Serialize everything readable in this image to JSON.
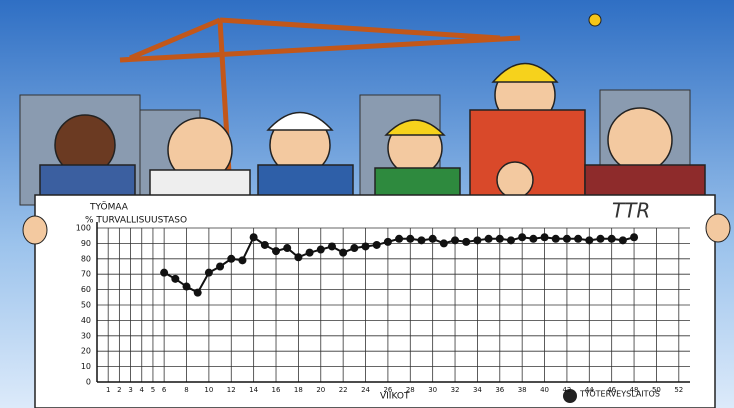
{
  "chart_data": {
    "type": "line",
    "title": "TYÖMAA",
    "y_label": "% TURVALLISUUSTASO",
    "x_label": "VIIKOT",
    "signature": "TTR",
    "logo_text": "TYÖTERVEYSLAITOS",
    "x": [
      6,
      7,
      8,
      9,
      10,
      11,
      12,
      13,
      14,
      15,
      16,
      17,
      18,
      19,
      20,
      21,
      22,
      23,
      24,
      25,
      26,
      27,
      28,
      29,
      30,
      31,
      32,
      33,
      34,
      35,
      36,
      37,
      38,
      39,
      40,
      41,
      42,
      43,
      44,
      45,
      46,
      47,
      48
    ],
    "series": [
      {
        "color": "#111111",
        "values": [
          71,
          67,
          62,
          58,
          71,
          75,
          80,
          79,
          94,
          89,
          85,
          87,
          81,
          84,
          86,
          88,
          84,
          87,
          88,
          89,
          91,
          93,
          93,
          92,
          93,
          90,
          92,
          91,
          92,
          93,
          93,
          92,
          94,
          93,
          94,
          93,
          93,
          93,
          92,
          93,
          93,
          92,
          94
        ]
      }
    ],
    "xlim": [
      0,
      53
    ],
    "xticks": [
      1,
      2,
      3,
      4,
      5,
      6,
      8,
      10,
      12,
      14,
      16,
      18,
      20,
      22,
      24,
      26,
      28,
      30,
      32,
      34,
      36,
      38,
      40,
      42,
      44,
      46,
      48,
      50,
      52
    ],
    "ylim": [
      0,
      100
    ],
    "yticks": [
      0,
      10,
      20,
      30,
      40,
      50,
      60,
      70,
      80,
      90,
      100
    ],
    "grid": true
  }
}
